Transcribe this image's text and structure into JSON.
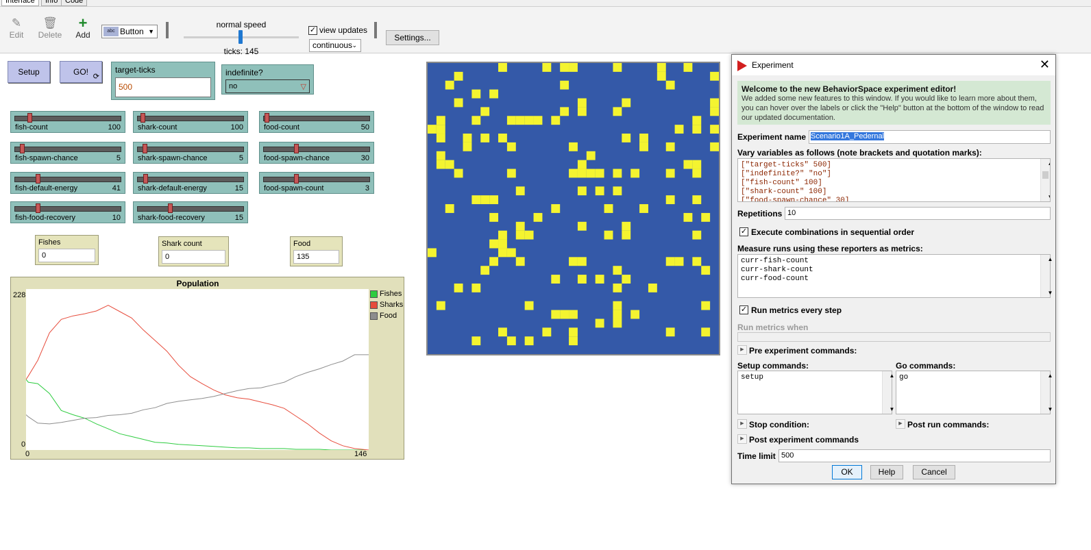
{
  "tabs": [
    "Interface",
    "Info",
    "Code"
  ],
  "toolbar": {
    "edit_label": "Edit",
    "delete_label": "Delete",
    "add_label": "Add",
    "widget_type": "Button",
    "widget_icon_text": "abc",
    "speed_label": "normal speed",
    "ticks_text": "ticks: 145",
    "view_updates_label": "view updates",
    "view_updates_checked": true,
    "update_mode": "continuous",
    "settings_label": "Settings..."
  },
  "interface": {
    "setup_label": "Setup",
    "go_label": "GO!",
    "target_ticks": {
      "label": "target-ticks",
      "value": "500"
    },
    "indefinite": {
      "label": "indefinite?",
      "value": "no"
    },
    "sliders": [
      {
        "name": "fish-count",
        "value": "100",
        "fraction": 0.12
      },
      {
        "name": "shark-count",
        "value": "100",
        "fraction": 0.02
      },
      {
        "name": "food-count",
        "value": "50",
        "fraction": 0.0
      },
      {
        "name": "fish-spawn-chance",
        "value": "5",
        "fraction": 0.04
      },
      {
        "name": "shark-spawn-chance",
        "value": "5",
        "fraction": 0.04
      },
      {
        "name": "food-spawn-chance",
        "value": "30",
        "fraction": 0.3
      },
      {
        "name": "fish-default-energy",
        "value": "41",
        "fraction": 0.2
      },
      {
        "name": "shark-default-energy",
        "value": "15",
        "fraction": 0.05
      },
      {
        "name": "food-spawn-count",
        "value": "3",
        "fraction": 0.3
      },
      {
        "name": "fish-food-recovery",
        "value": "10",
        "fraction": 0.2
      },
      {
        "name": "shark-food-recovery",
        "value": "15",
        "fraction": 0.3
      }
    ],
    "monitors": [
      {
        "label": "Fishes",
        "value": "0"
      },
      {
        "label": "Shark count",
        "value": "0"
      },
      {
        "label": "Food",
        "value": "135"
      }
    ]
  },
  "plot": {
    "title": "Population",
    "y_max_label": "228",
    "y_min_label": "0",
    "x_min_label": "0",
    "x_max_label": "146",
    "legend": [
      {
        "name": "Fishes",
        "color": "#2ecc40"
      },
      {
        "name": "Sharks",
        "color": "#e74c3c"
      },
      {
        "name": "Food",
        "color": "#8d8d8d"
      }
    ]
  },
  "chart_data": {
    "type": "line",
    "title": "Population",
    "xlim": [
      0,
      146
    ],
    "ylim": [
      0,
      228
    ],
    "x": [
      0,
      1,
      5,
      10,
      15,
      20,
      25,
      30,
      35,
      40,
      45,
      50,
      55,
      60,
      65,
      70,
      75,
      80,
      85,
      90,
      95,
      100,
      105,
      110,
      115,
      120,
      125,
      130,
      135,
      140,
      146
    ],
    "series": [
      {
        "name": "Fishes",
        "color": "#2ecc40",
        "values": [
          100,
          96,
          94,
          80,
          56,
          50,
          45,
          37,
          30,
          23,
          19,
          15,
          11,
          10,
          8,
          7,
          6,
          5,
          4,
          3,
          3,
          2,
          2,
          2,
          1,
          1,
          1,
          0,
          0,
          0,
          0
        ]
      },
      {
        "name": "Sharks",
        "color": "#e74c3c",
        "values": [
          100,
          105,
          127,
          166,
          185,
          190,
          193,
          197,
          205,
          196,
          187,
          170,
          155,
          140,
          120,
          104,
          94,
          85,
          78,
          74,
          72,
          68,
          64,
          59,
          48,
          37,
          24,
          13,
          6,
          2,
          0
        ]
      },
      {
        "name": "Food",
        "color": "#8d8d8d",
        "values": [
          50,
          47,
          38,
          37,
          39,
          42,
          45,
          46,
          49,
          50,
          52,
          57,
          60,
          66,
          69,
          71,
          73,
          76,
          80,
          84,
          87,
          88,
          92,
          96,
          104,
          110,
          115,
          121,
          126,
          135,
          135
        ]
      }
    ]
  },
  "world": {
    "background_color": "#3459a8",
    "food_color": "#f4f430"
  },
  "experiment_dialog": {
    "title": "Experiment",
    "welcome_heading": "Welcome to the new BehaviorSpace experiment editor!",
    "welcome_text": "We added some new features to this window. If you would like to learn more about them, you can hover over the labels or click the \"Help\" button at the bottom of the window to read our updated documentation.",
    "experiment_name_label": "Experiment name",
    "experiment_name": "Scenario1A_Pedernal",
    "vary_label": "Vary variables as follows (note brackets and quotation marks):",
    "vary_lines": [
      "[\"target-ticks\" 500]",
      "[\"indefinite?\" \"no\"]",
      "[\"fish-count\" 100]",
      "[\"shark-count\" 100]",
      "[\"food-spawn-chance\" 30]"
    ],
    "repetitions_label": "Repetitions",
    "repetitions": "10",
    "sequential_label": "Execute combinations in sequential order",
    "sequential_checked": true,
    "measure_label": "Measure runs using these reporters as metrics:",
    "metrics": [
      "curr-fish-count",
      "curr-shark-count",
      "curr-food-count"
    ],
    "run_metrics_every_step_label": "Run metrics every step",
    "run_metrics_every_step_checked": true,
    "run_metrics_when_label": "Run metrics when",
    "pre_experiment_label": "Pre experiment commands:",
    "setup_commands_label": "Setup commands:",
    "setup_commands": "setup",
    "go_commands_label": "Go commands:",
    "go_commands": "go",
    "stop_condition_label": "Stop condition:",
    "post_run_label": "Post run commands:",
    "post_experiment_label": "Post experiment commands",
    "time_limit_label": "Time limit",
    "time_limit": "500",
    "ok_label": "OK",
    "help_label": "Help",
    "cancel_label": "Cancel"
  }
}
